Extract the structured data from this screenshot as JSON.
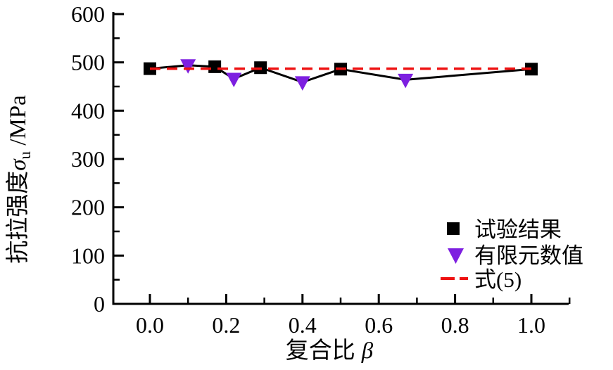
{
  "figure": {
    "background": "#ffffff"
  },
  "chart_data": {
    "type": "line",
    "title": "",
    "xlabel": {
      "text": "复合比",
      "symbol": "β"
    },
    "ylabel": {
      "text": "抗拉强度",
      "symbol": "σ",
      "subscript": "u",
      "unit": " /MPa"
    },
    "xlim": [
      -0.09,
      1.1
    ],
    "ylim": [
      0,
      600
    ],
    "grid": false,
    "x_axis": {
      "major": [
        {
          "v": 0.0,
          "label": "0.0"
        },
        {
          "v": 0.2,
          "label": "0.2"
        },
        {
          "v": 0.4,
          "label": "0.4"
        },
        {
          "v": 0.6,
          "label": "0.6"
        },
        {
          "v": 0.8,
          "label": "0.8"
        },
        {
          "v": 1.0,
          "label": "1.0"
        }
      ],
      "minor": [
        0.1,
        0.3,
        0.5,
        0.7,
        0.9,
        1.1
      ]
    },
    "y_axis": {
      "major": [
        {
          "v": 0,
          "label": "0"
        },
        {
          "v": 100,
          "label": "100"
        },
        {
          "v": 200,
          "label": "200"
        },
        {
          "v": 300,
          "label": "300"
        },
        {
          "v": 400,
          "label": "400"
        },
        {
          "v": 500,
          "label": "500"
        },
        {
          "v": 600,
          "label": "600"
        }
      ],
      "minor": [
        50,
        150,
        250,
        350,
        450,
        550
      ]
    },
    "series": [
      {
        "name": "试验结果",
        "marker": "square",
        "color": "#000000",
        "points": [
          [
            0.0,
            487
          ],
          [
            0.17,
            491
          ],
          [
            0.29,
            489
          ],
          [
            0.5,
            486
          ],
          [
            1.0,
            486
          ]
        ]
      },
      {
        "name": "有限元数值",
        "marker": "triangle-down",
        "color": "#7D1FE0",
        "points": [
          [
            0.1,
            494
          ],
          [
            0.22,
            466
          ],
          [
            0.4,
            459
          ],
          [
            0.67,
            464
          ]
        ]
      },
      {
        "name": "式(5)",
        "style": "dashed",
        "color": "#EE1111",
        "points": [
          [
            0.0,
            487
          ],
          [
            1.0,
            487
          ]
        ]
      }
    ],
    "connector_line": {
      "color": "#000000",
      "points": [
        [
          0.0,
          487
        ],
        [
          0.1,
          494
        ],
        [
          0.17,
          491
        ],
        [
          0.22,
          466
        ],
        [
          0.29,
          489
        ],
        [
          0.4,
          459
        ],
        [
          0.5,
          486
        ],
        [
          0.67,
          464
        ],
        [
          1.0,
          486
        ]
      ]
    },
    "legend": {
      "position": "lower-right"
    },
    "colors": {
      "axis": "#000000",
      "background": "#ffffff"
    }
  }
}
